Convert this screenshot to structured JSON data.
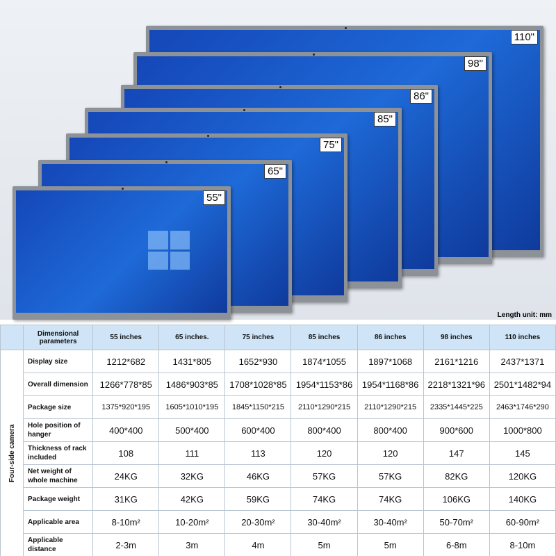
{
  "screens": [
    "110\"",
    "98\"",
    "86\"",
    "85\"",
    "75\"",
    "65\"",
    "55\""
  ],
  "unit_note": "Length unit: mm",
  "table": {
    "side_label": "Four-side camera",
    "header": [
      "Dimensional parameters",
      "55 inches",
      "65 inches.",
      "75 inches",
      "85 inches",
      "86 inches",
      "98 inches",
      "110 inches"
    ],
    "rows": [
      {
        "label": "Display size",
        "values": [
          "1212*682",
          "1431*805",
          "1652*930",
          "1874*1055",
          "1897*1068",
          "2161*1216",
          "2437*1371"
        ]
      },
      {
        "label": "Overall dimension",
        "values": [
          "1266*778*85",
          "1486*903*85",
          "1708*1028*85",
          "1954*1153*86",
          "1954*1168*86",
          "2218*1321*96",
          "2501*1482*94"
        ]
      },
      {
        "label": "Package size",
        "values": [
          "1375*920*195",
          "1605*1010*195",
          "1845*1150*215",
          "2110*1290*215",
          "2110*1290*215",
          "2335*1445*225",
          "2463*1746*290"
        ]
      },
      {
        "label": "Hole position of hanger",
        "values": [
          "400*400",
          "500*400",
          "600*400",
          "800*400",
          "800*400",
          "900*600",
          "1000*800"
        ]
      },
      {
        "label": "Thickness of rack included",
        "values": [
          "108",
          "111",
          "113",
          "120",
          "120",
          "147",
          "145"
        ]
      },
      {
        "label": "Net weight of whole machine",
        "values": [
          "24KG",
          "32KG",
          "46KG",
          "57KG",
          "57KG",
          "82KG",
          "120KG"
        ]
      },
      {
        "label": "Package weight",
        "values": [
          "31KG",
          "42KG",
          "59KG",
          "74KG",
          "74KG",
          "106KG",
          "140KG"
        ]
      },
      {
        "label": "Applicable area",
        "values": [
          "8-10m²",
          "10-20m²",
          "20-30m²",
          "30-40m²",
          "30-40m²",
          "50-70m²",
          "60-90m²"
        ]
      },
      {
        "label": "Applicable distance",
        "values": [
          "2-3m",
          "3m",
          "4m",
          "5m",
          "5m",
          "6-8m",
          "8-10m"
        ]
      }
    ]
  }
}
